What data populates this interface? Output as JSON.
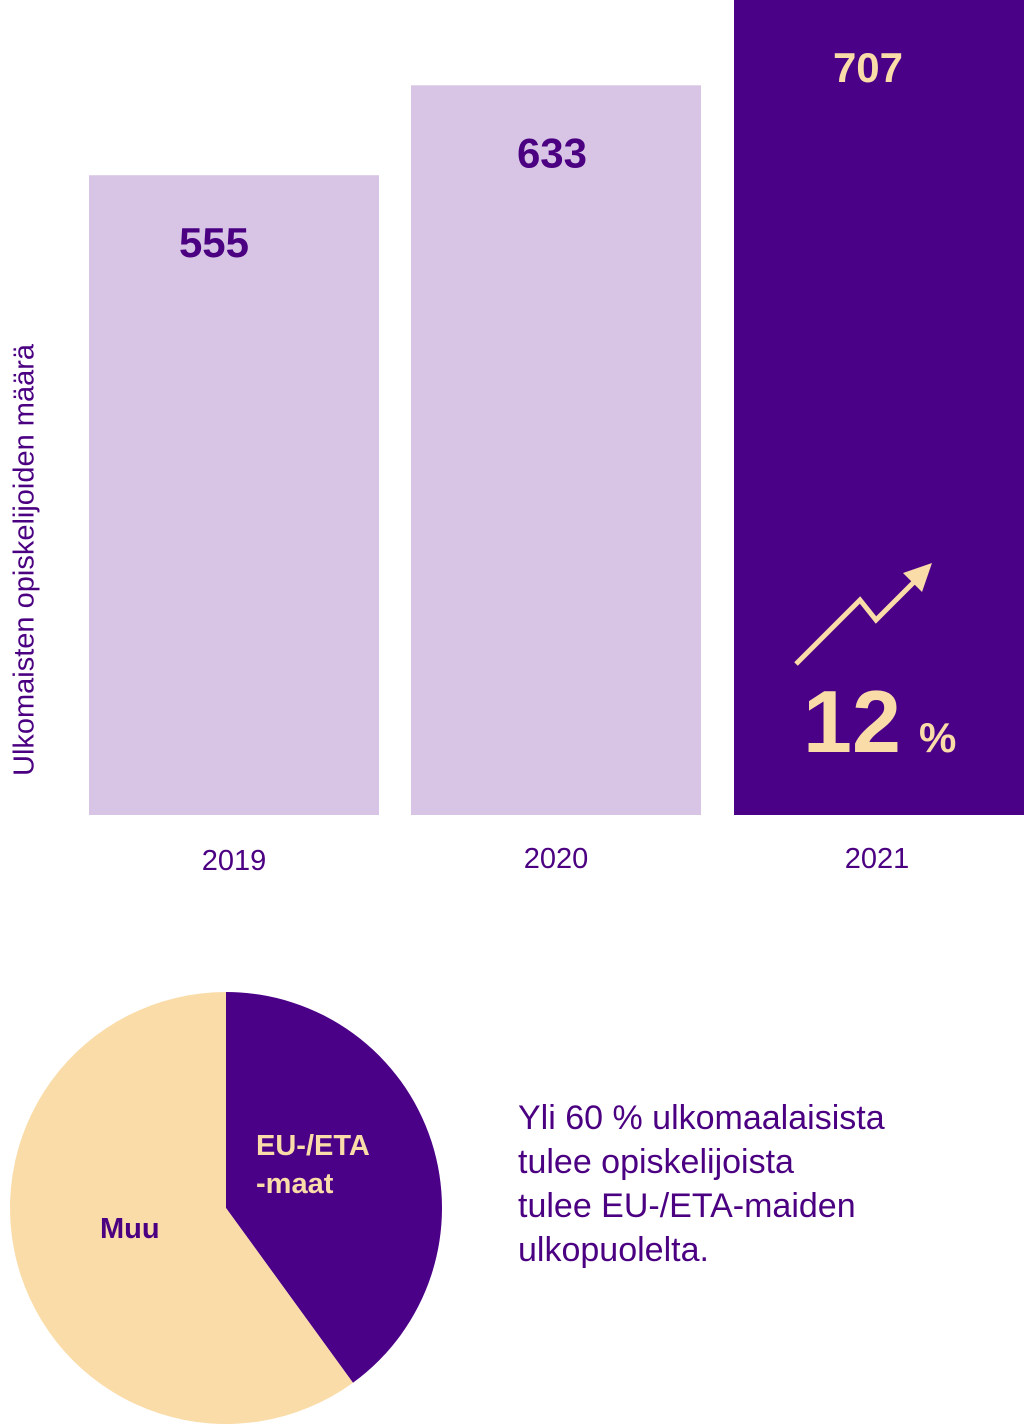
{
  "colors": {
    "bar_light": "#d8c5e5",
    "bar_dark": "#4b0088",
    "text_purple": "#4b0082",
    "highlight": "#fadca8",
    "pie_eu": "#4b0088",
    "pie_other": "#fadca8"
  },
  "chart_data": [
    {
      "type": "bar",
      "title": "",
      "xlabel": "",
      "ylabel": "Ulkomaisten opiskelijoiden määrä",
      "categories": [
        "2019",
        "2020",
        "2021"
      ],
      "values": [
        555,
        633,
        707
      ],
      "data_labels": [
        "555",
        "633",
        "707"
      ],
      "highlight_index": 2,
      "growth_label": {
        "value": "12",
        "unit": "%"
      },
      "grid": false
    },
    {
      "type": "pie",
      "labels": [
        "EU-/ETA\n-maat",
        "Muu"
      ],
      "label_lines": [
        [
          "EU-/ETA",
          "-maat"
        ],
        [
          "Muu"
        ]
      ],
      "values": [
        40,
        60
      ]
    }
  ],
  "caption_lines": [
    "Yli 60 % ulkomaalaisista",
    "tulee opiskelijoista",
    "tulee EU-/ETA-maiden",
    "ulkopuolelta."
  ]
}
